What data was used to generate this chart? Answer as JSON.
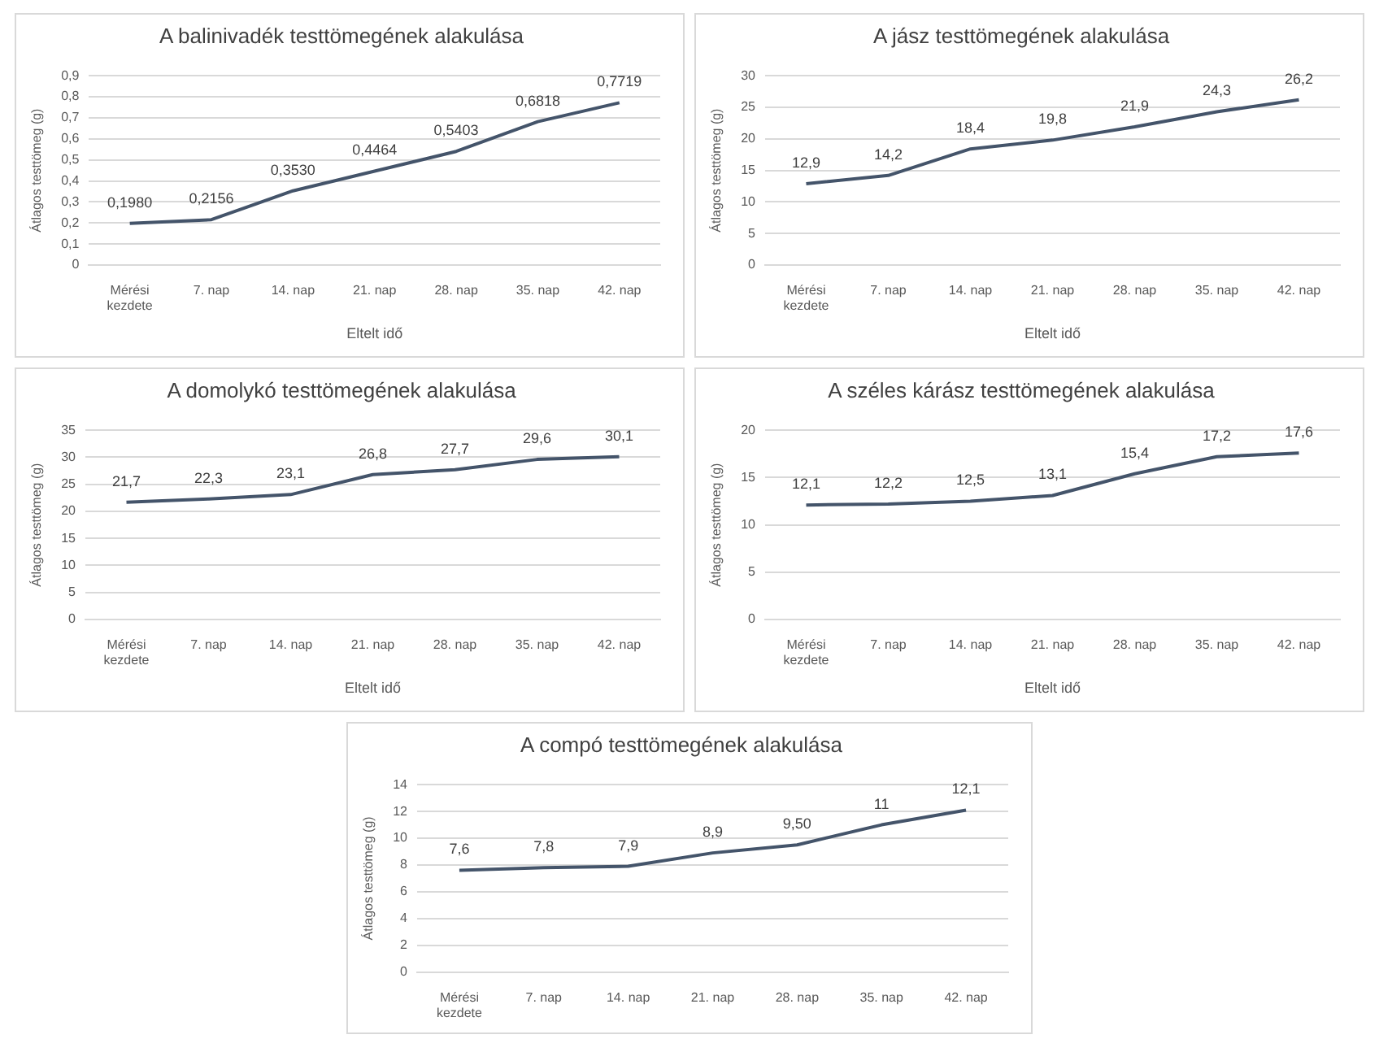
{
  "chart_data": [
    {
      "type": "line",
      "title": "A balinivadék testtömegének alakulása",
      "xlabel": "Eltelt idő",
      "ylabel": "Átlagos testtömeg (g)",
      "categories": [
        "Mérési kezdete",
        "7. nap",
        "14. nap",
        "21. nap",
        "28. nap",
        "35. nap",
        "42. nap"
      ],
      "series": [
        {
          "color": "#44546a",
          "values": [
            0.198,
            0.2156,
            0.353,
            0.4464,
            0.5403,
            0.6818,
            0.7719
          ],
          "value_labels": [
            "0,1980",
            "0,2156",
            "0,3530",
            "0,4464",
            "0,5403",
            "0,6818",
            "0,7719"
          ]
        }
      ],
      "ylim": [
        0,
        0.9
      ],
      "yticks": [
        0,
        {
          "value": 0.1,
          "label": "0,1"
        },
        {
          "value": 0.2,
          "label": "0,2"
        },
        {
          "value": 0.3,
          "label": "0,3"
        },
        {
          "value": 0.4,
          "label": "0,4"
        },
        {
          "value": 0.5,
          "label": "0,5"
        },
        {
          "value": 0.6,
          "label": "0,6"
        },
        {
          "value": 0.7,
          "label": "0,7"
        },
        {
          "value": 0.8,
          "label": "0,8"
        },
        {
          "value": 0.9,
          "label": "0,9"
        }
      ],
      "grid": "y",
      "legend": false,
      "marker": "none",
      "line_style": "solid"
    },
    {
      "type": "line",
      "title": "A jász testtömegének alakulása",
      "xlabel": "Eltelt idő",
      "ylabel": "Átlagos testtömeg (g)",
      "categories": [
        "Mérési kezdete",
        "7. nap",
        "14. nap",
        "21. nap",
        "28. nap",
        "35. nap",
        "42. nap"
      ],
      "series": [
        {
          "color": "#44546a",
          "values": [
            12.9,
            14.2,
            18.4,
            19.8,
            21.9,
            24.3,
            26.2
          ],
          "value_labels": [
            "12,9",
            "14,2",
            "18,4",
            "19,8",
            "21,9",
            "24,3",
            "26,2"
          ]
        }
      ],
      "ylim": [
        0,
        30
      ],
      "yticks": [
        0,
        5,
        10,
        15,
        20,
        25,
        30
      ],
      "grid": "y",
      "legend": false,
      "marker": "none",
      "line_style": "solid"
    },
    {
      "type": "line",
      "title": "A domolykó testtömegének alakulása",
      "xlabel": "Eltelt idő",
      "ylabel": "Átlagos testtömeg (g)",
      "categories": [
        "Mérési kezdete",
        "7. nap",
        "14. nap",
        "21. nap",
        "28. nap",
        "35. nap",
        "42. nap"
      ],
      "series": [
        {
          "color": "#44546a",
          "values": [
            21.7,
            22.3,
            23.1,
            26.8,
            27.7,
            29.6,
            30.1
          ],
          "value_labels": [
            "21,7",
            "22,3",
            "23,1",
            "26,8",
            "27,7",
            "29,6",
            "30,1"
          ]
        }
      ],
      "ylim": [
        0,
        35
      ],
      "yticks": [
        0,
        5,
        10,
        15,
        20,
        25,
        30,
        35
      ],
      "grid": "y",
      "legend": false,
      "marker": "none",
      "line_style": "solid"
    },
    {
      "type": "line",
      "title": "A széles kárász testtömegének alakulása",
      "xlabel": "Eltelt idő",
      "ylabel": "Átlagos testtömeg (g)",
      "categories": [
        "Mérési kezdete",
        "7. nap",
        "14. nap",
        "21. nap",
        "28. nap",
        "35. nap",
        "42. nap"
      ],
      "series": [
        {
          "color": "#44546a",
          "values": [
            12.1,
            12.2,
            12.5,
            13.1,
            15.4,
            17.2,
            17.6
          ],
          "value_labels": [
            "12,1",
            "12,2",
            "12,5",
            "13,1",
            "15,4",
            "17,2",
            "17,6"
          ]
        }
      ],
      "ylim": [
        0,
        20
      ],
      "yticks": [
        0,
        5,
        10,
        15,
        20
      ],
      "grid": "y",
      "legend": false,
      "marker": "none",
      "line_style": "solid"
    },
    {
      "type": "line",
      "title": "A compó testtömegének alakulása",
      "ylabel": "Átlagos testtömeg (g)",
      "categories": [
        "Mérési kezdete",
        "7. nap",
        "14. nap",
        "21. nap",
        "28. nap",
        "35. nap",
        "42. nap"
      ],
      "series": [
        {
          "color": "#44546a",
          "values": [
            7.6,
            7.8,
            7.9,
            8.9,
            9.5,
            11,
            12.1
          ],
          "value_labels": [
            "7,6",
            "7,8",
            "7,9",
            "8,9",
            "9,50",
            "11",
            "12,1"
          ]
        }
      ],
      "ylim": [
        0,
        14
      ],
      "yticks": [
        0,
        2,
        4,
        6,
        8,
        10,
        12,
        14
      ],
      "grid": "y",
      "legend": false,
      "marker": "none",
      "line_style": "solid"
    }
  ]
}
